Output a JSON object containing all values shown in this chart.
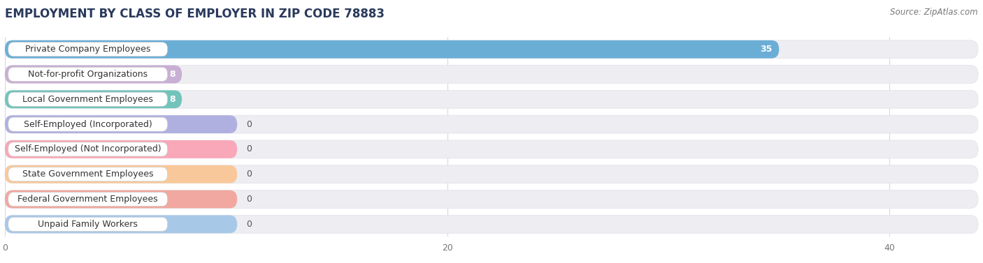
{
  "title": "EMPLOYMENT BY CLASS OF EMPLOYER IN ZIP CODE 78883",
  "source": "Source: ZipAtlas.com",
  "categories": [
    "Private Company Employees",
    "Not-for-profit Organizations",
    "Local Government Employees",
    "Self-Employed (Incorporated)",
    "Self-Employed (Not Incorporated)",
    "State Government Employees",
    "Federal Government Employees",
    "Unpaid Family Workers"
  ],
  "values": [
    35,
    8,
    8,
    0,
    0,
    0,
    0,
    0
  ],
  "bar_colors": [
    "#6aaed6",
    "#c9afd4",
    "#72c4bb",
    "#b0b0e0",
    "#f8a8b8",
    "#f9c89a",
    "#f0a8a0",
    "#a8c8e8"
  ],
  "row_bg_color": "#ededf2",
  "row_bg_border": "#e0e0e8",
  "xlim": [
    0,
    44
  ],
  "xticks": [
    0,
    20,
    40
  ],
  "title_fontsize": 12,
  "source_fontsize": 8.5,
  "label_fontsize": 9,
  "value_fontsize": 9,
  "background_color": "#ffffff",
  "grid_color": "#d8d8d8",
  "title_color": "#2a3a5c",
  "label_text_color": "#333333",
  "value_text_color": "#555555",
  "source_color": "#777777"
}
